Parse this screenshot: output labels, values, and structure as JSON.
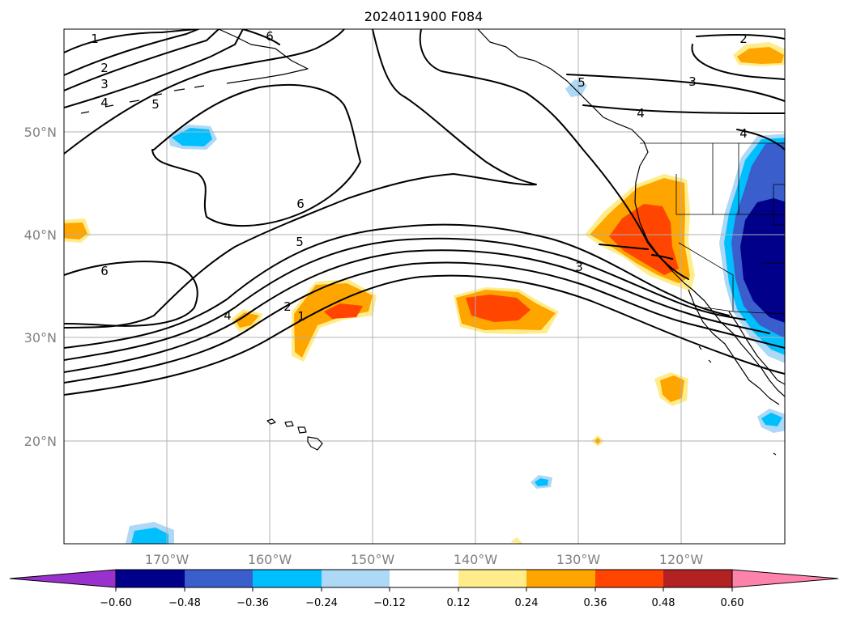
{
  "title": "2024011900 F084",
  "map": {
    "lon_labels": [
      {
        "lon": -170,
        "label": "170°W"
      },
      {
        "lon": -160,
        "label": "160°W"
      },
      {
        "lon": -150,
        "label": "150°W"
      },
      {
        "lon": -140,
        "label": "140°W"
      },
      {
        "lon": -130,
        "label": "130°W"
      },
      {
        "lon": -120,
        "label": "120°W"
      }
    ],
    "lat_labels": [
      {
        "lat": 50,
        "label": "50°N"
      },
      {
        "lat": 40,
        "label": "40°N"
      },
      {
        "lat": 30,
        "label": "30°N"
      },
      {
        "lat": 20,
        "label": "20°N"
      }
    ],
    "contour_labels": [
      "1",
      "2",
      "3",
      "4",
      "5",
      "6",
      "6",
      "5",
      "4",
      "3",
      "2",
      "1",
      "6",
      "4",
      "3",
      "2",
      "4",
      "5"
    ]
  },
  "colorbar": {
    "ticks": [
      "−0.60",
      "−0.48",
      "−0.36",
      "−0.24",
      "−0.12",
      "0.12",
      "0.24",
      "0.36",
      "0.48",
      "0.60"
    ],
    "colors": [
      "#9932cc",
      "#00008b",
      "#3a5fcd",
      "#00bfff",
      "#add8f6",
      "#ffffff",
      "#ffec8b",
      "#ffa500",
      "#ff4500",
      "#b22222",
      "#ff82ab"
    ]
  }
}
